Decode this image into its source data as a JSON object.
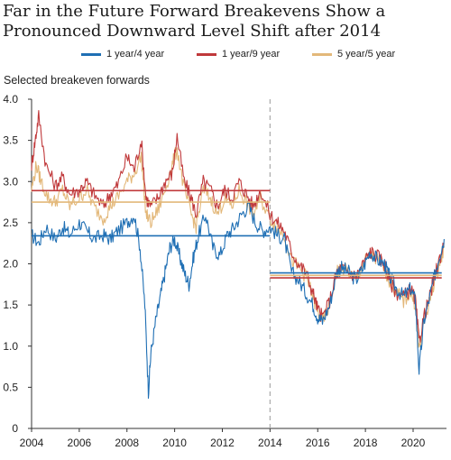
{
  "title": "Far in the Future Forward Breakevens Show a Pronounced Downward Level Shift after 2014",
  "chart_data": {
    "type": "line",
    "title": "Far in the Future Forward Breakevens Show a Pronounced Downward Level Shift after 2014",
    "ylabel": "Selected breakeven forwards",
    "xlabel": "",
    "xlim": [
      2004,
      2021.4
    ],
    "ylim": [
      0,
      4.0
    ],
    "x_ticks": [
      "2004",
      "2006",
      "2008",
      "2010",
      "2012",
      "2014",
      "2016",
      "2018",
      "2020"
    ],
    "y_ticks": [
      "0",
      "0.5",
      "1.0",
      "1.5",
      "2.0",
      "2.5",
      "3.0",
      "3.5",
      "4.0"
    ],
    "legend_position": "top",
    "grid": false,
    "vertical_marker": {
      "x": 2014,
      "style": "dashed"
    },
    "series": [
      {
        "name": "1 year/4 year",
        "color": "#1f6fb4",
        "pre_2014_mean": 2.34,
        "post_2014_mean": 1.89,
        "points": [
          [
            2004.0,
            2.35
          ],
          [
            2004.3,
            2.25
          ],
          [
            2004.6,
            2.45
          ],
          [
            2005.0,
            2.3
          ],
          [
            2005.3,
            2.45
          ],
          [
            2005.6,
            2.35
          ],
          [
            2006.0,
            2.5
          ],
          [
            2006.3,
            2.4
          ],
          [
            2006.6,
            2.3
          ],
          [
            2007.0,
            2.35
          ],
          [
            2007.3,
            2.3
          ],
          [
            2007.6,
            2.4
          ],
          [
            2008.0,
            2.5
          ],
          [
            2008.3,
            2.6
          ],
          [
            2008.55,
            2.2
          ],
          [
            2008.75,
            1.5
          ],
          [
            2008.9,
            0.45
          ],
          [
            2009.0,
            0.9
          ],
          [
            2009.2,
            1.3
          ],
          [
            2009.4,
            1.6
          ],
          [
            2009.6,
            1.9
          ],
          [
            2009.8,
            2.2
          ],
          [
            2010.0,
            2.3
          ],
          [
            2010.2,
            2.1
          ],
          [
            2010.4,
            1.9
          ],
          [
            2010.6,
            1.75
          ],
          [
            2010.8,
            2.1
          ],
          [
            2011.0,
            2.35
          ],
          [
            2011.3,
            2.6
          ],
          [
            2011.6,
            2.2
          ],
          [
            2011.9,
            2.1
          ],
          [
            2012.2,
            2.35
          ],
          [
            2012.5,
            2.45
          ],
          [
            2012.8,
            2.6
          ],
          [
            2013.1,
            2.7
          ],
          [
            2013.4,
            2.5
          ],
          [
            2013.7,
            2.4
          ],
          [
            2014.0,
            2.45
          ],
          [
            2014.3,
            2.35
          ],
          [
            2014.6,
            2.3
          ],
          [
            2014.9,
            1.9
          ],
          [
            2015.2,
            1.8
          ],
          [
            2015.5,
            1.65
          ],
          [
            2015.8,
            1.5
          ],
          [
            2016.0,
            1.35
          ],
          [
            2016.2,
            1.3
          ],
          [
            2016.5,
            1.5
          ],
          [
            2016.8,
            1.9
          ],
          [
            2017.0,
            1.95
          ],
          [
            2017.3,
            1.9
          ],
          [
            2017.6,
            1.8
          ],
          [
            2017.9,
            1.95
          ],
          [
            2018.2,
            2.15
          ],
          [
            2018.5,
            2.05
          ],
          [
            2018.8,
            2.0
          ],
          [
            2019.0,
            1.85
          ],
          [
            2019.3,
            1.7
          ],
          [
            2019.6,
            1.6
          ],
          [
            2019.9,
            1.7
          ],
          [
            2020.1,
            1.55
          ],
          [
            2020.25,
            0.7
          ],
          [
            2020.45,
            1.3
          ],
          [
            2020.7,
            1.6
          ],
          [
            2020.9,
            1.85
          ],
          [
            2021.1,
            2.1
          ],
          [
            2021.3,
            2.3
          ]
        ]
      },
      {
        "name": "1 year/9 year",
        "color": "#c0393b",
        "pre_2014_mean": 2.89,
        "post_2014_mean": 1.83,
        "points": [
          [
            2004.0,
            3.2
          ],
          [
            2004.15,
            3.5
          ],
          [
            2004.3,
            3.8
          ],
          [
            2004.6,
            3.2
          ],
          [
            2005.0,
            2.95
          ],
          [
            2005.3,
            3.05
          ],
          [
            2005.6,
            2.85
          ],
          [
            2006.0,
            2.9
          ],
          [
            2006.3,
            3.0
          ],
          [
            2006.6,
            2.85
          ],
          [
            2007.0,
            2.7
          ],
          [
            2007.3,
            2.85
          ],
          [
            2007.6,
            2.95
          ],
          [
            2008.0,
            3.3
          ],
          [
            2008.3,
            3.15
          ],
          [
            2008.6,
            3.5
          ],
          [
            2008.8,
            2.8
          ],
          [
            2009.0,
            2.7
          ],
          [
            2009.3,
            2.8
          ],
          [
            2009.6,
            3.0
          ],
          [
            2009.9,
            3.1
          ],
          [
            2010.1,
            3.55
          ],
          [
            2010.4,
            3.0
          ],
          [
            2010.7,
            2.8
          ],
          [
            2010.9,
            2.6
          ],
          [
            2011.2,
            3.0
          ],
          [
            2011.5,
            2.9
          ],
          [
            2011.8,
            2.7
          ],
          [
            2012.1,
            2.9
          ],
          [
            2012.4,
            2.8
          ],
          [
            2012.7,
            3.0
          ],
          [
            2013.0,
            2.85
          ],
          [
            2013.3,
            2.7
          ],
          [
            2013.6,
            2.9
          ],
          [
            2014.0,
            2.6
          ],
          [
            2014.3,
            2.5
          ],
          [
            2014.6,
            2.4
          ],
          [
            2014.9,
            2.15
          ],
          [
            2015.2,
            2.0
          ],
          [
            2015.5,
            1.9
          ],
          [
            2015.8,
            1.65
          ],
          [
            2016.0,
            1.45
          ],
          [
            2016.2,
            1.35
          ],
          [
            2016.5,
            1.55
          ],
          [
            2016.8,
            1.9
          ],
          [
            2017.0,
            1.95
          ],
          [
            2017.3,
            1.9
          ],
          [
            2017.6,
            1.85
          ],
          [
            2017.9,
            2.0
          ],
          [
            2018.2,
            2.15
          ],
          [
            2018.5,
            2.1
          ],
          [
            2018.8,
            2.0
          ],
          [
            2019.0,
            1.8
          ],
          [
            2019.3,
            1.65
          ],
          [
            2019.6,
            1.6
          ],
          [
            2019.9,
            1.7
          ],
          [
            2020.1,
            1.55
          ],
          [
            2020.25,
            1.05
          ],
          [
            2020.45,
            1.35
          ],
          [
            2020.7,
            1.6
          ],
          [
            2020.9,
            1.85
          ],
          [
            2021.1,
            2.05
          ],
          [
            2021.3,
            2.25
          ]
        ]
      },
      {
        "name": "5 year/5 year",
        "color": "#e3b87a",
        "pre_2014_mean": 2.75,
        "post_2014_mean": 1.86,
        "points": [
          [
            2004.0,
            2.9
          ],
          [
            2004.2,
            3.2
          ],
          [
            2004.4,
            3.0
          ],
          [
            2004.7,
            2.8
          ],
          [
            2005.0,
            2.75
          ],
          [
            2005.3,
            2.9
          ],
          [
            2005.6,
            2.7
          ],
          [
            2006.0,
            2.8
          ],
          [
            2006.3,
            2.9
          ],
          [
            2006.6,
            2.7
          ],
          [
            2007.0,
            2.55
          ],
          [
            2007.3,
            2.7
          ],
          [
            2007.6,
            2.8
          ],
          [
            2008.0,
            3.0
          ],
          [
            2008.3,
            3.1
          ],
          [
            2008.6,
            3.3
          ],
          [
            2008.8,
            2.6
          ],
          [
            2009.0,
            2.5
          ],
          [
            2009.3,
            2.65
          ],
          [
            2009.6,
            2.9
          ],
          [
            2009.9,
            3.2
          ],
          [
            2010.1,
            3.4
          ],
          [
            2010.4,
            2.9
          ],
          [
            2010.7,
            2.6
          ],
          [
            2010.9,
            2.45
          ],
          [
            2011.2,
            2.9
          ],
          [
            2011.5,
            2.8
          ],
          [
            2011.8,
            2.6
          ],
          [
            2012.1,
            2.8
          ],
          [
            2012.4,
            2.7
          ],
          [
            2012.7,
            2.9
          ],
          [
            2013.0,
            2.75
          ],
          [
            2013.3,
            2.6
          ],
          [
            2013.6,
            2.8
          ],
          [
            2014.0,
            2.55
          ],
          [
            2014.3,
            2.45
          ],
          [
            2014.6,
            2.35
          ],
          [
            2014.9,
            2.05
          ],
          [
            2015.2,
            1.95
          ],
          [
            2015.5,
            1.85
          ],
          [
            2015.8,
            1.6
          ],
          [
            2016.0,
            1.4
          ],
          [
            2016.2,
            1.3
          ],
          [
            2016.5,
            1.5
          ],
          [
            2016.8,
            1.9
          ],
          [
            2017.0,
            1.95
          ],
          [
            2017.3,
            1.9
          ],
          [
            2017.6,
            1.8
          ],
          [
            2017.9,
            2.0
          ],
          [
            2018.2,
            2.1
          ],
          [
            2018.5,
            2.05
          ],
          [
            2018.8,
            1.95
          ],
          [
            2019.0,
            1.8
          ],
          [
            2019.3,
            1.65
          ],
          [
            2019.6,
            1.55
          ],
          [
            2019.9,
            1.65
          ],
          [
            2020.1,
            1.5
          ],
          [
            2020.25,
            0.95
          ],
          [
            2020.45,
            1.3
          ],
          [
            2020.7,
            1.55
          ],
          [
            2020.9,
            1.8
          ],
          [
            2021.1,
            2.0
          ],
          [
            2021.3,
            2.2
          ]
        ]
      }
    ]
  }
}
